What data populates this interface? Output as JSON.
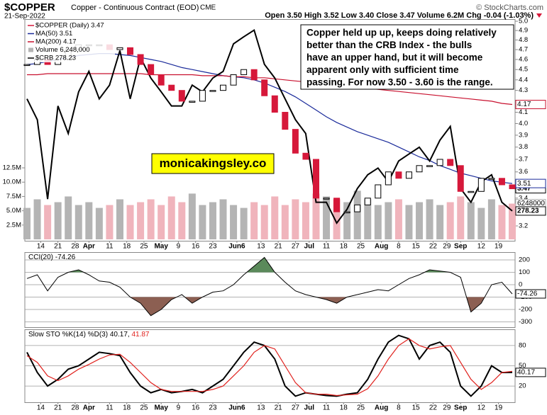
{
  "header": {
    "symbol": "$COPPER",
    "name": "Copper - Continuous Contract (EOD)",
    "exchange": "CME",
    "date": "21-Sep-2022",
    "quote": "Open 3.50 High 3.52 Low 3.40 Close 3.47 Volume 6.2M Chg -0.04 (-1.03%)",
    "credit": "© StockCharts.com"
  },
  "annotation": [
    "Copper held up up, keeps doing relatively",
    "better than the CRB Index - the bulls",
    "have an upper hand, but it will become",
    "apparent only with sufficient time",
    "passing. For now 3.50 - 3.60 is the range."
  ],
  "watermark": "monicakingsley.co",
  "chart_data": [
    {
      "type": "candlestick",
      "log_scale": true,
      "x": [
        0,
        3,
        6,
        9,
        12,
        15,
        18,
        21,
        24,
        27,
        30,
        33,
        36,
        39,
        42,
        45,
        48,
        51,
        54,
        57,
        60,
        63,
        66,
        69,
        72,
        75,
        78,
        81,
        84,
        87,
        90,
        93,
        96,
        99,
        102,
        105,
        108,
        111,
        114,
        117,
        120,
        123,
        126,
        129,
        132,
        135,
        138,
        141
      ],
      "xlim": [
        0,
        141
      ],
      "xticks": [
        {
          "value": 4,
          "label": "14"
        },
        {
          "value": 9,
          "label": "21"
        },
        {
          "value": 14,
          "label": "28"
        },
        {
          "value": 18,
          "label": "Apr"
        },
        {
          "value": 24,
          "label": "11"
        },
        {
          "value": 29,
          "label": "18"
        },
        {
          "value": 34,
          "label": "25"
        },
        {
          "value": 39,
          "label": "May"
        },
        {
          "value": 44,
          "label": "9"
        },
        {
          "value": 49,
          "label": "16"
        },
        {
          "value": 54,
          "label": "23"
        },
        {
          "value": 61,
          "label": "Jun6"
        },
        {
          "value": 68,
          "label": "13"
        },
        {
          "value": 73,
          "label": "21"
        },
        {
          "value": 78,
          "label": "27"
        },
        {
          "value": 82,
          "label": "Jul"
        },
        {
          "value": 87,
          "label": "11"
        },
        {
          "value": 92,
          "label": "18"
        },
        {
          "value": 97,
          "label": "25"
        },
        {
          "value": 103,
          "label": "Aug"
        },
        {
          "value": 108,
          "label": "8"
        },
        {
          "value": 113,
          "label": "15"
        },
        {
          "value": 118,
          "label": "22"
        },
        {
          "value": 122,
          "label": "29"
        },
        {
          "value": 126,
          "label": "Sep"
        },
        {
          "value": 132,
          "label": "12"
        },
        {
          "value": 137,
          "label": "19"
        }
      ],
      "ylim": [
        3.2,
        5.0
      ],
      "yticks": [
        {
          "value": 5.0,
          "label": "5.0"
        },
        4.9,
        4.8,
        4.7,
        4.6,
        4.5,
        4.4,
        4.3,
        4.1,
        {
          "value": 4.0,
          "label": "4.0"
        },
        3.9,
        3.8,
        3.7,
        3.6,
        3.4,
        3.2
      ],
      "y2lim": [
        0,
        12.5
      ],
      "y2ticks": [
        {
          "value": 12.5,
          "label": "12.5M"
        },
        {
          "value": 10,
          "label": "10.0M"
        },
        {
          "value": 7.5,
          "label": "7.5M"
        },
        {
          "value": 5,
          "label": "5.0M"
        },
        {
          "value": 2.5,
          "label": "2.5M"
        }
      ],
      "y3lim": [
        274,
        332
      ],
      "series": [
        {
          "name": "$COPPER (Daily) 3.47",
          "type": "candlestick",
          "color": "#000000",
          "down_color": "#d6183a",
          "end_label": "3.47",
          "values": [
            4.55,
            4.6,
            4.55,
            4.6,
            4.7,
            4.75,
            4.75,
            4.75,
            4.7,
            4.72,
            4.65,
            4.55,
            4.45,
            4.35,
            4.3,
            4.2,
            4.2,
            4.3,
            4.3,
            4.35,
            4.45,
            4.5,
            4.4,
            4.25,
            4.1,
            3.95,
            3.75,
            3.7,
            3.4,
            3.4,
            3.3,
            3.3,
            3.35,
            3.4,
            3.5,
            3.6,
            3.55,
            3.6,
            3.65,
            3.65,
            3.7,
            3.65,
            3.45,
            3.45,
            3.55,
            3.55,
            3.5,
            3.47
          ]
        },
        {
          "name": "MA(50) 3.51",
          "type": "line",
          "color": "#1a2a9a",
          "end_label": "3.51",
          "values": [
            4.55,
            4.56,
            4.58,
            4.6,
            4.62,
            4.64,
            4.65,
            4.66,
            4.66,
            4.65,
            4.64,
            4.62,
            4.6,
            4.58,
            4.55,
            4.52,
            4.5,
            4.48,
            4.46,
            4.44,
            4.43,
            4.42,
            4.4,
            4.37,
            4.33,
            4.29,
            4.24,
            4.18,
            4.12,
            4.06,
            4.01,
            3.97,
            3.93,
            3.9,
            3.87,
            3.84,
            3.8,
            3.76,
            3.72,
            3.69,
            3.65,
            3.62,
            3.59,
            3.57,
            3.55,
            3.53,
            3.52,
            3.51
          ]
        },
        {
          "name": "MA(200) 4.17",
          "type": "line",
          "color": "#c8102e",
          "end_label": "4.17",
          "values": [
            4.45,
            4.45,
            4.46,
            4.46,
            4.46,
            4.46,
            4.46,
            4.46,
            4.46,
            4.46,
            4.46,
            4.46,
            4.45,
            4.45,
            4.45,
            4.45,
            4.45,
            4.44,
            4.44,
            4.44,
            4.43,
            4.43,
            4.42,
            4.42,
            4.41,
            4.4,
            4.39,
            4.38,
            4.37,
            4.36,
            4.35,
            4.34,
            4.33,
            4.32,
            4.31,
            4.3,
            4.29,
            4.28,
            4.27,
            4.26,
            4.25,
            4.24,
            4.23,
            4.22,
            4.21,
            4.2,
            4.18,
            4.17
          ]
        },
        {
          "name": "Volume 6,248,000",
          "type": "bar",
          "axis": "y2",
          "color": "#b4b4b4",
          "down_color": "#f0b4bc",
          "end_label": "6248000",
          "values": [
            5.5,
            7,
            6,
            6.5,
            7.5,
            6,
            6.5,
            5.5,
            6,
            7,
            6,
            6.5,
            7,
            6,
            7.5,
            6.5,
            8,
            6,
            6.5,
            7,
            6,
            5.5,
            6.5,
            6,
            7.5,
            6,
            7,
            6.5,
            8,
            7.5,
            7,
            6.5,
            8.5,
            7,
            6,
            6.5,
            7,
            6,
            6.5,
            7,
            6,
            6.5,
            7.5,
            6.5,
            5.5,
            7,
            6,
            6.248
          ]
        },
        {
          "name": "$CRB 278.23",
          "type": "line",
          "axis": "y3",
          "color": "#000000",
          "end_label": "278.23",
          "values": [
            310.0,
            304.1,
            281.6,
            308.0,
            300.2,
            312.0,
            317.8,
            310.0,
            313.9,
            323.7,
            310.0,
            321.7,
            315.9,
            312.0,
            308.0,
            308.0,
            313.9,
            312.0,
            315.9,
            317.8,
            325.6,
            327.6,
            329.5,
            319.8,
            315.9,
            310.0,
            304.1,
            300.2,
            280.7,
            280.7,
            274.8,
            278.7,
            284.6,
            288.5,
            290.4,
            286.5,
            292.4,
            294.4,
            296.3,
            292.4,
            298.3,
            302.2,
            284.6,
            280.7,
            286.5,
            288.5,
            280.7,
            278.23
          ]
        }
      ]
    },
    {
      "type": "line",
      "title": "CCI(20)",
      "x": [
        0,
        3,
        6,
        9,
        12,
        15,
        18,
        21,
        24,
        27,
        30,
        33,
        36,
        39,
        42,
        45,
        48,
        51,
        54,
        57,
        60,
        63,
        66,
        69,
        72,
        75,
        78,
        81,
        84,
        87,
        90,
        93,
        96,
        99,
        102,
        105,
        108,
        111,
        114,
        117,
        120,
        123,
        126,
        129,
        132,
        135,
        138,
        141
      ],
      "xlim": [
        0,
        141
      ],
      "ylim": [
        -343,
        263
      ],
      "yticks": [
        200,
        100,
        0,
        -100,
        -200,
        -300
      ],
      "fill_above": 100,
      "fill_below": -100,
      "fill_above_color": "#5b8a5b",
      "fill_below_color": "#8c5f52",
      "series": [
        {
          "legend": "-74.26",
          "color": "#000000",
          "end_label": "-74.26",
          "values": [
            50,
            80,
            -50,
            60,
            100,
            120,
            80,
            30,
            20,
            -20,
            -100,
            -150,
            -250,
            -200,
            -120,
            -80,
            -150,
            -100,
            -60,
            -50,
            0,
            80,
            150,
            220,
            100,
            20,
            -50,
            -80,
            -100,
            -120,
            -150,
            -100,
            -80,
            -60,
            -40,
            -50,
            0,
            50,
            80,
            120,
            110,
            100,
            60,
            -220,
            -150,
            0,
            20,
            -74.26
          ]
        }
      ]
    },
    {
      "type": "line",
      "title": "Slow STO %K(14) %D(3)",
      "x": [
        0,
        3,
        6,
        9,
        12,
        15,
        18,
        21,
        24,
        27,
        30,
        33,
        36,
        39,
        42,
        45,
        48,
        51,
        54,
        57,
        60,
        63,
        66,
        69,
        72,
        75,
        78,
        81,
        84,
        87,
        90,
        93,
        96,
        99,
        102,
        105,
        108,
        111,
        114,
        117,
        120,
        123,
        126,
        129,
        132,
        135,
        138,
        141
      ],
      "xlim": [
        0,
        141
      ],
      "ylim": [
        -4,
        104
      ],
      "yticks": [
        80,
        50,
        20
      ],
      "xticks": [
        {
          "value": 4,
          "label": "14"
        },
        {
          "value": 9,
          "label": "21"
        },
        {
          "value": 14,
          "label": "28"
        },
        {
          "value": 18,
          "label": "Apr"
        },
        {
          "value": 24,
          "label": "11"
        },
        {
          "value": 29,
          "label": "18"
        },
        {
          "value": 34,
          "label": "25"
        },
        {
          "value": 39,
          "label": "May"
        },
        {
          "value": 44,
          "label": "9"
        },
        {
          "value": 49,
          "label": "16"
        },
        {
          "value": 54,
          "label": "23"
        },
        {
          "value": 61,
          "label": "Jun6"
        },
        {
          "value": 68,
          "label": "13"
        },
        {
          "value": 73,
          "label": "21"
        },
        {
          "value": 78,
          "label": "27"
        },
        {
          "value": 82,
          "label": "Jul"
        },
        {
          "value": 87,
          "label": "11"
        },
        {
          "value": 92,
          "label": "18"
        },
        {
          "value": 97,
          "label": "25"
        },
        {
          "value": 103,
          "label": "Aug"
        },
        {
          "value": 108,
          "label": "8"
        },
        {
          "value": 113,
          "label": "15"
        },
        {
          "value": 118,
          "label": "22"
        },
        {
          "value": 122,
          "label": "29"
        },
        {
          "value": 126,
          "label": "Sep"
        },
        {
          "value": 132,
          "label": "12"
        },
        {
          "value": 137,
          "label": "19"
        }
      ],
      "series": [
        {
          "legend": "40.17,",
          "color": "#000000",
          "width": 2,
          "end_label": "40.17",
          "values": [
            70,
            40,
            20,
            30,
            45,
            50,
            60,
            70,
            68,
            65,
            40,
            20,
            10,
            15,
            10,
            12,
            15,
            10,
            20,
            30,
            50,
            70,
            85,
            80,
            60,
            20,
            5,
            10,
            8,
            6,
            5,
            8,
            10,
            30,
            60,
            85,
            95,
            90,
            60,
            80,
            85,
            70,
            20,
            5,
            20,
            50,
            40,
            40.17
          ]
        },
        {
          "legend": "41.87",
          "color": "#e0201c",
          "width": 1.2,
          "values": [
            65,
            55,
            35,
            28,
            35,
            45,
            52,
            60,
            66,
            67,
            55,
            40,
            25,
            15,
            12,
            12,
            12,
            12,
            15,
            20,
            35,
            50,
            70,
            80,
            75,
            50,
            25,
            10,
            8,
            8,
            6,
            7,
            8,
            16,
            35,
            60,
            80,
            90,
            80,
            75,
            78,
            80,
            55,
            30,
            15,
            25,
            40,
            41.87
          ]
        }
      ]
    }
  ]
}
